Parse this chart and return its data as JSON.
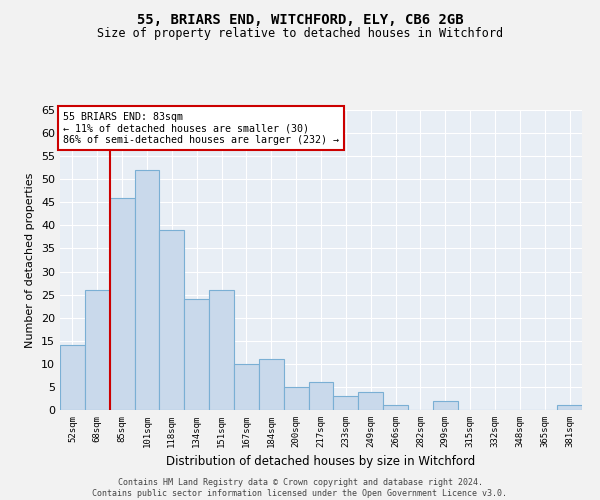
{
  "title1": "55, BRIARS END, WITCHFORD, ELY, CB6 2GB",
  "title2": "Size of property relative to detached houses in Witchford",
  "xlabel": "Distribution of detached houses by size in Witchford",
  "ylabel": "Number of detached properties",
  "categories": [
    "52sqm",
    "68sqm",
    "85sqm",
    "101sqm",
    "118sqm",
    "134sqm",
    "151sqm",
    "167sqm",
    "184sqm",
    "200sqm",
    "217sqm",
    "233sqm",
    "249sqm",
    "266sqm",
    "282sqm",
    "299sqm",
    "315sqm",
    "332sqm",
    "348sqm",
    "365sqm",
    "381sqm"
  ],
  "values": [
    14,
    26,
    46,
    52,
    39,
    24,
    26,
    10,
    11,
    5,
    6,
    3,
    4,
    1,
    0,
    2,
    0,
    0,
    0,
    0,
    1
  ],
  "bar_color": "#c9d9eb",
  "bar_edge_color": "#7aafd4",
  "background_color": "#e8eef5",
  "grid_color": "#ffffff",
  "red_line_index": 2,
  "annotation_title": "55 BRIARS END: 83sqm",
  "annotation_line1": "← 11% of detached houses are smaller (30)",
  "annotation_line2": "86% of semi-detached houses are larger (232) →",
  "annotation_box_color": "#ffffff",
  "annotation_box_edge": "#cc0000",
  "red_line_color": "#cc0000",
  "ylim": [
    0,
    65
  ],
  "yticks": [
    0,
    5,
    10,
    15,
    20,
    25,
    30,
    35,
    40,
    45,
    50,
    55,
    60,
    65
  ],
  "footer1": "Contains HM Land Registry data © Crown copyright and database right 2024.",
  "footer2": "Contains public sector information licensed under the Open Government Licence v3.0.",
  "fig_bg": "#f2f2f2"
}
